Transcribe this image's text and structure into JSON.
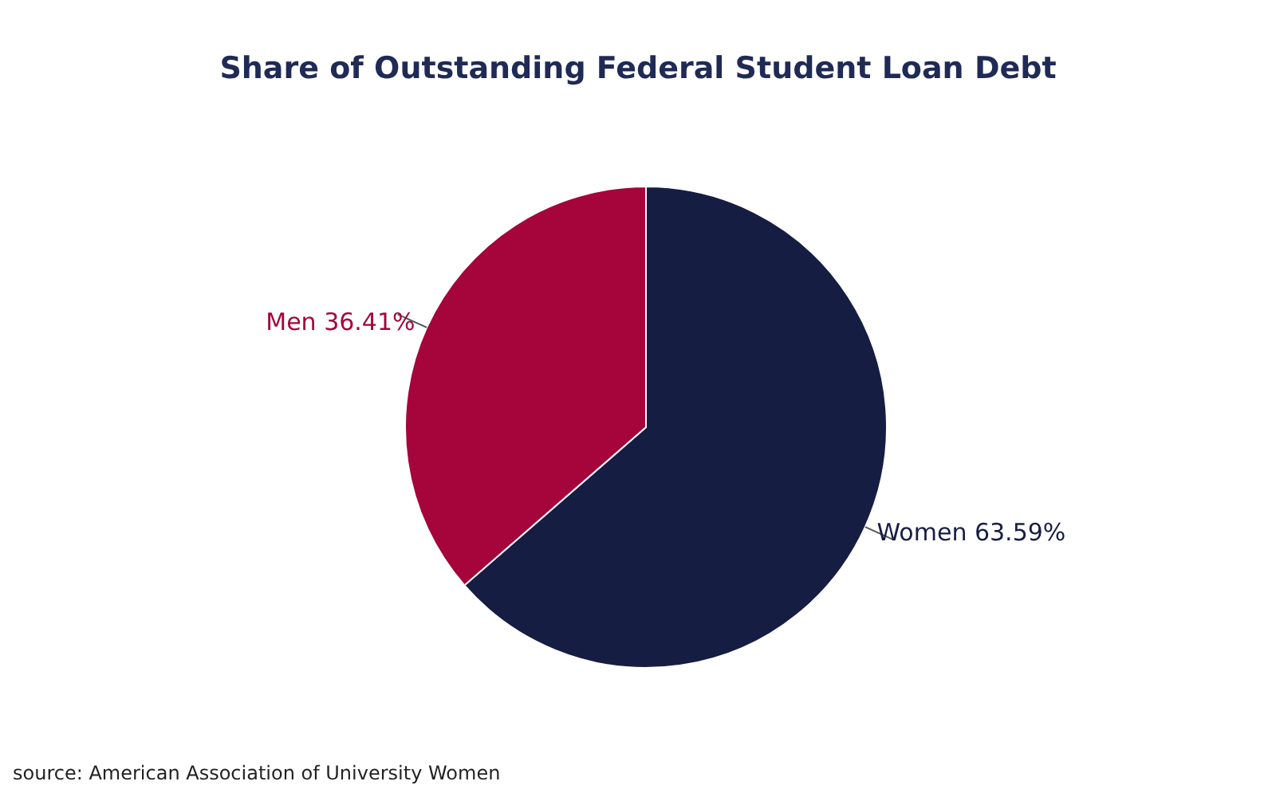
{
  "chart_data": {
    "type": "pie",
    "title": "Share of Outstanding Federal Student Loan Debt",
    "categories": [
      "Women",
      "Men"
    ],
    "values": [
      63.59,
      36.41
    ],
    "colors": [
      "#161d43",
      "#a5053a"
    ],
    "value_labels": [
      "63.59%",
      "36.41%"
    ],
    "annotations": [
      "source: American Association of University Women"
    ]
  }
}
